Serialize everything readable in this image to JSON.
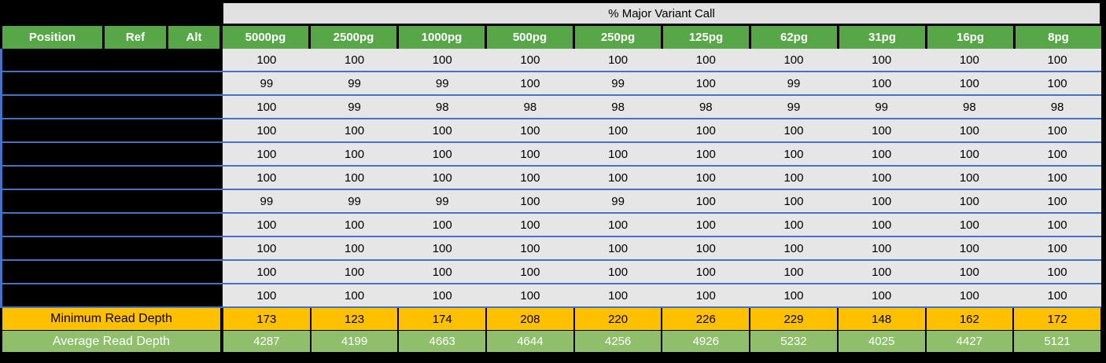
{
  "chart_data": {
    "type": "table",
    "title": "% Major Variant Call",
    "row_header_columns": [
      "Position",
      "Ref",
      "Alt"
    ],
    "row_headers_redacted": true,
    "categories": [
      "5000pg",
      "2500pg",
      "1000pg",
      "500pg",
      "250pg",
      "125pg",
      "62pg",
      "31pg",
      "16pg",
      "8pg"
    ],
    "percent_major_variant_rows": [
      [
        100,
        100,
        100,
        100,
        100,
        100,
        100,
        100,
        100,
        100
      ],
      [
        99,
        99,
        99,
        100,
        99,
        100,
        99,
        100,
        100,
        100
      ],
      [
        100,
        99,
        98,
        98,
        98,
        98,
        99,
        99,
        98,
        98
      ],
      [
        100,
        100,
        100,
        100,
        100,
        100,
        100,
        100,
        100,
        100
      ],
      [
        100,
        100,
        100,
        100,
        100,
        100,
        100,
        100,
        100,
        100
      ],
      [
        100,
        100,
        100,
        100,
        100,
        100,
        100,
        100,
        100,
        100
      ],
      [
        99,
        99,
        99,
        100,
        99,
        100,
        100,
        100,
        100,
        100
      ],
      [
        100,
        100,
        100,
        100,
        100,
        100,
        100,
        100,
        100,
        100
      ],
      [
        100,
        100,
        100,
        100,
        100,
        100,
        100,
        100,
        100,
        100
      ],
      [
        100,
        100,
        100,
        100,
        100,
        100,
        100,
        100,
        100,
        100
      ],
      [
        100,
        100,
        100,
        100,
        100,
        100,
        100,
        100,
        100,
        100
      ]
    ],
    "summary_rows": [
      {
        "label": "Minimum Read Depth",
        "values": [
          173,
          123,
          174,
          208,
          220,
          226,
          229,
          148,
          162,
          172
        ]
      },
      {
        "label": "Average Read Depth",
        "values": [
          4287,
          4199,
          4663,
          4644,
          4256,
          4926,
          5232,
          4025,
          4427,
          5121
        ]
      }
    ],
    "colors": {
      "header_green": "#57A648",
      "summary_green": "#90BF6B",
      "summary_orange": "#FFC000",
      "cell_gray": "#E7E6E6",
      "title_gray": "#E2E1E1",
      "row_divider_blue": "#4472C4",
      "background_black": "#000000"
    },
    "layout": {
      "grid": "off",
      "row_dividers": "blue horizontal lines",
      "redacted_area": "Position/Ref/Alt body cells blacked out"
    }
  }
}
